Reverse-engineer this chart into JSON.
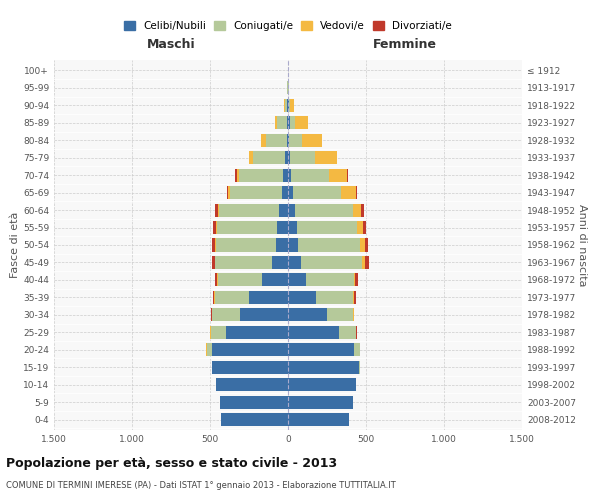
{
  "age_groups": [
    "0-4",
    "5-9",
    "10-14",
    "15-19",
    "20-24",
    "25-29",
    "30-34",
    "35-39",
    "40-44",
    "45-49",
    "50-54",
    "55-59",
    "60-64",
    "65-69",
    "70-74",
    "75-79",
    "80-84",
    "85-89",
    "90-94",
    "95-99",
    "100+"
  ],
  "birth_years": [
    "2008-2012",
    "2003-2007",
    "1998-2002",
    "1993-1997",
    "1988-1992",
    "1983-1987",
    "1978-1982",
    "1973-1977",
    "1968-1972",
    "1963-1967",
    "1958-1962",
    "1953-1957",
    "1948-1952",
    "1943-1947",
    "1938-1942",
    "1933-1937",
    "1928-1932",
    "1923-1927",
    "1918-1922",
    "1913-1917",
    "≤ 1912"
  ],
  "males": {
    "celibi": [
      430,
      435,
      460,
      485,
      490,
      400,
      310,
      250,
      165,
      105,
      75,
      70,
      55,
      40,
      30,
      20,
      8,
      8,
      4,
      2,
      1
    ],
    "coniugati": [
      2,
      2,
      3,
      3,
      30,
      95,
      175,
      220,
      285,
      360,
      385,
      385,
      390,
      335,
      285,
      205,
      130,
      60,
      15,
      3,
      2
    ],
    "vedovi": [
      0,
      0,
      0,
      0,
      3,
      2,
      2,
      2,
      2,
      3,
      5,
      5,
      5,
      8,
      15,
      22,
      32,
      18,
      5,
      0,
      0
    ],
    "divorziati": [
      0,
      0,
      0,
      0,
      2,
      3,
      5,
      10,
      18,
      22,
      20,
      18,
      15,
      10,
      8,
      5,
      0,
      0,
      0,
      0,
      0
    ]
  },
  "females": {
    "nubili": [
      390,
      415,
      435,
      455,
      420,
      330,
      248,
      180,
      115,
      85,
      65,
      55,
      45,
      30,
      20,
      15,
      8,
      10,
      4,
      2,
      1
    ],
    "coniugate": [
      2,
      2,
      3,
      5,
      40,
      105,
      170,
      238,
      308,
      388,
      398,
      388,
      370,
      310,
      240,
      158,
      82,
      38,
      8,
      2,
      1
    ],
    "vedove": [
      0,
      0,
      0,
      0,
      2,
      2,
      3,
      5,
      8,
      18,
      28,
      38,
      55,
      95,
      118,
      138,
      128,
      80,
      25,
      5,
      1
    ],
    "divorziate": [
      0,
      0,
      0,
      0,
      2,
      3,
      5,
      10,
      18,
      28,
      25,
      18,
      18,
      10,
      8,
      5,
      0,
      0,
      0,
      0,
      0
    ]
  },
  "colors": {
    "celibi": "#3a6ea5",
    "coniugati": "#b5c99a",
    "vedovi": "#f4b942",
    "divorziati": "#c0392b"
  },
  "title": "Popolazione per età, sesso e stato civile - 2013",
  "subtitle": "COMUNE DI TERMINI IMERESE (PA) - Dati ISTAT 1° gennaio 2013 - Elaborazione TUTTITALIA.IT",
  "xlabel_maschi": "Maschi",
  "xlabel_femmine": "Femmine",
  "ylabel_left": "Fasce di età",
  "ylabel_right": "Anni di nascita",
  "xlim": 1500,
  "legend_labels": [
    "Celibi/Nubili",
    "Coniugati/e",
    "Vedovi/e",
    "Divorziati/e"
  ]
}
